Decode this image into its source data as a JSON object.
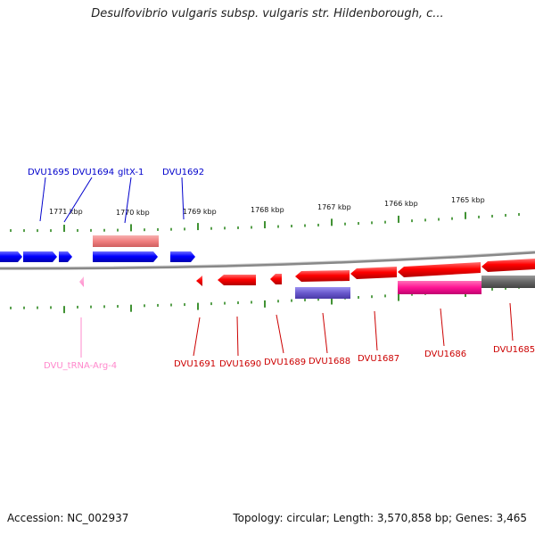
{
  "title": "Desulfovibrio vulgaris subsp. vulgaris str. Hildenborough, c...",
  "footer": {
    "accession": "Accession: NC_002937",
    "summary": "Topology: circular; Length: 3,570,858 bp; Genes: 3,465"
  },
  "colors": {
    "forward_gene": "#0000ff",
    "reverse_gene": "#ff0000",
    "forward_label": "#0000cc",
    "reverse_label": "#cc0000",
    "trna": "#ff88cc",
    "rrna_like": "#f08080",
    "reverse_feature_purple": "#6a5acd",
    "reverse_feature_magenta": "#ff1493",
    "reverse_feature_gray": "#666666",
    "backbone": "#888888",
    "tick": "#117700"
  },
  "scale_labels": [
    "1771 kbp",
    "1770 kbp",
    "1769 kbp",
    "1768 kbp",
    "1767 kbp",
    "1766 kbp",
    "1765 kbp"
  ],
  "top_genes": [
    {
      "label": "DVU1695"
    },
    {
      "label": "DVU1694"
    },
    {
      "label": "gltX-1"
    },
    {
      "label": "DVU1692"
    }
  ],
  "bottom_genes": [
    {
      "label": "DVU_tRNA-Arg-4"
    },
    {
      "label": "DVU1691"
    },
    {
      "label": "DVU1690"
    },
    {
      "label": "DVU1689"
    },
    {
      "label": "DVU1688"
    },
    {
      "label": "DVU1687"
    },
    {
      "label": "DVU1686"
    },
    {
      "label": "DVU1685"
    }
  ]
}
